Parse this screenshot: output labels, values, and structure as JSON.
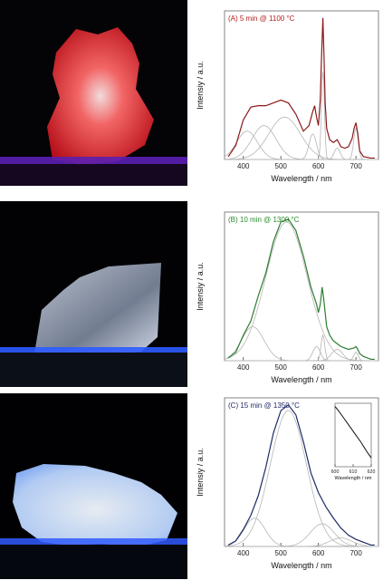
{
  "photos": [
    {
      "glow": "#ff2030",
      "tint": "red"
    },
    {
      "glow": "#7fb7ff",
      "tint": "blue-white"
    },
    {
      "glow": "#b9d9ff",
      "tint": "white"
    }
  ],
  "chart_data": [
    {
      "type": "line",
      "title": "(A) 5 min @ 1100 °C",
      "title_color": "#b01c1c",
      "xlabel": "Wavelength / nm",
      "ylabel": "Intensiy / a.u.",
      "xlim": [
        350,
        760
      ],
      "ylim": [
        0,
        1.05
      ],
      "xticks": [
        400,
        500,
        600,
        700
      ],
      "series": [
        {
          "color": "#8b1a1a",
          "x": [
            360,
            380,
            400,
            420,
            440,
            460,
            480,
            500,
            520,
            540,
            560,
            575,
            585,
            590,
            595,
            600,
            605,
            608,
            612,
            615,
            618,
            622,
            630,
            640,
            650,
            660,
            670,
            680,
            690,
            695,
            700,
            705,
            710,
            720,
            740,
            750
          ],
          "y": [
            0.02,
            0.1,
            0.28,
            0.37,
            0.38,
            0.38,
            0.4,
            0.42,
            0.4,
            0.32,
            0.2,
            0.24,
            0.34,
            0.38,
            0.3,
            0.24,
            0.42,
            0.7,
            1.0,
            0.72,
            0.4,
            0.22,
            0.14,
            0.12,
            0.14,
            0.09,
            0.08,
            0.09,
            0.15,
            0.22,
            0.26,
            0.18,
            0.06,
            0.02,
            0.01,
            0.01
          ]
        }
      ],
      "components": [
        {
          "center": 410,
          "width": 28,
          "height": 0.2
        },
        {
          "center": 455,
          "width": 32,
          "height": 0.24
        },
        {
          "center": 510,
          "width": 42,
          "height": 0.3
        },
        {
          "center": 585,
          "width": 10,
          "height": 0.18
        },
        {
          "center": 612,
          "width": 4,
          "height": 0.62
        },
        {
          "center": 650,
          "width": 8,
          "height": 0.08
        },
        {
          "center": 700,
          "width": 6,
          "height": 0.22
        }
      ]
    },
    {
      "type": "line",
      "title": "(B) 10 min @ 1300 °C",
      "title_color": "#2b8a2b",
      "xlabel": "Wavelength / nm",
      "ylabel": "Intensiy / a.u.",
      "xlim": [
        350,
        760
      ],
      "ylim": [
        0,
        1.05
      ],
      "xticks": [
        400,
        500,
        600,
        700
      ],
      "series": [
        {
          "color": "#2e7d32",
          "x": [
            360,
            380,
            400,
            420,
            440,
            460,
            480,
            500,
            520,
            540,
            560,
            580,
            595,
            600,
            605,
            610,
            614,
            618,
            622,
            630,
            640,
            650,
            660,
            680,
            695,
            700,
            705,
            710,
            720,
            740,
            750
          ],
          "y": [
            0.02,
            0.06,
            0.18,
            0.28,
            0.46,
            0.62,
            0.84,
            0.98,
            1.0,
            0.92,
            0.74,
            0.52,
            0.4,
            0.34,
            0.4,
            0.52,
            0.44,
            0.34,
            0.24,
            0.18,
            0.14,
            0.12,
            0.1,
            0.08,
            0.09,
            0.1,
            0.08,
            0.05,
            0.03,
            0.01,
            0.01
          ]
        }
      ],
      "components": [
        {
          "center": 425,
          "width": 30,
          "height": 0.24
        },
        {
          "center": 515,
          "width": 55,
          "height": 0.98
        },
        {
          "center": 595,
          "width": 10,
          "height": 0.1
        },
        {
          "center": 612,
          "width": 5,
          "height": 0.18
        },
        {
          "center": 650,
          "width": 15,
          "height": 0.08
        },
        {
          "center": 700,
          "width": 6,
          "height": 0.06
        }
      ]
    },
    {
      "type": "line",
      "title": "(C) 15 min @ 1350 °C",
      "title_color": "#1f2a66",
      "xlabel": "Wavelength / nm",
      "ylabel": "Intensiy / a.u.",
      "xlim": [
        350,
        760
      ],
      "ylim": [
        0,
        1.05
      ],
      "xticks": [
        400,
        500,
        600,
        700
      ],
      "series": [
        {
          "color": "#1f2a66",
          "x": [
            360,
            380,
            400,
            420,
            440,
            460,
            480,
            500,
            520,
            540,
            560,
            580,
            600,
            620,
            640,
            660,
            680,
            700,
            720,
            740,
            750
          ],
          "y": [
            0.01,
            0.04,
            0.12,
            0.22,
            0.36,
            0.56,
            0.8,
            0.96,
            1.0,
            0.93,
            0.74,
            0.52,
            0.38,
            0.28,
            0.2,
            0.13,
            0.08,
            0.05,
            0.03,
            0.01,
            0.01
          ]
        }
      ],
      "components": [
        {
          "center": 430,
          "width": 28,
          "height": 0.2
        },
        {
          "center": 520,
          "width": 48,
          "height": 0.96
        },
        {
          "center": 610,
          "width": 32,
          "height": 0.16
        },
        {
          "center": 660,
          "width": 30,
          "height": 0.06
        }
      ],
      "inset": {
        "xlabel": "Wavelength / nm",
        "xticks": [
          600,
          610,
          620
        ],
        "xlim": [
          600,
          620
        ],
        "series": {
          "x": [
            600,
            602,
            604,
            606,
            608,
            610,
            612,
            614,
            616,
            618,
            620
          ],
          "y": [
            0.95,
            0.88,
            0.8,
            0.72,
            0.64,
            0.56,
            0.48,
            0.4,
            0.31,
            0.22,
            0.14
          ]
        }
      }
    }
  ]
}
